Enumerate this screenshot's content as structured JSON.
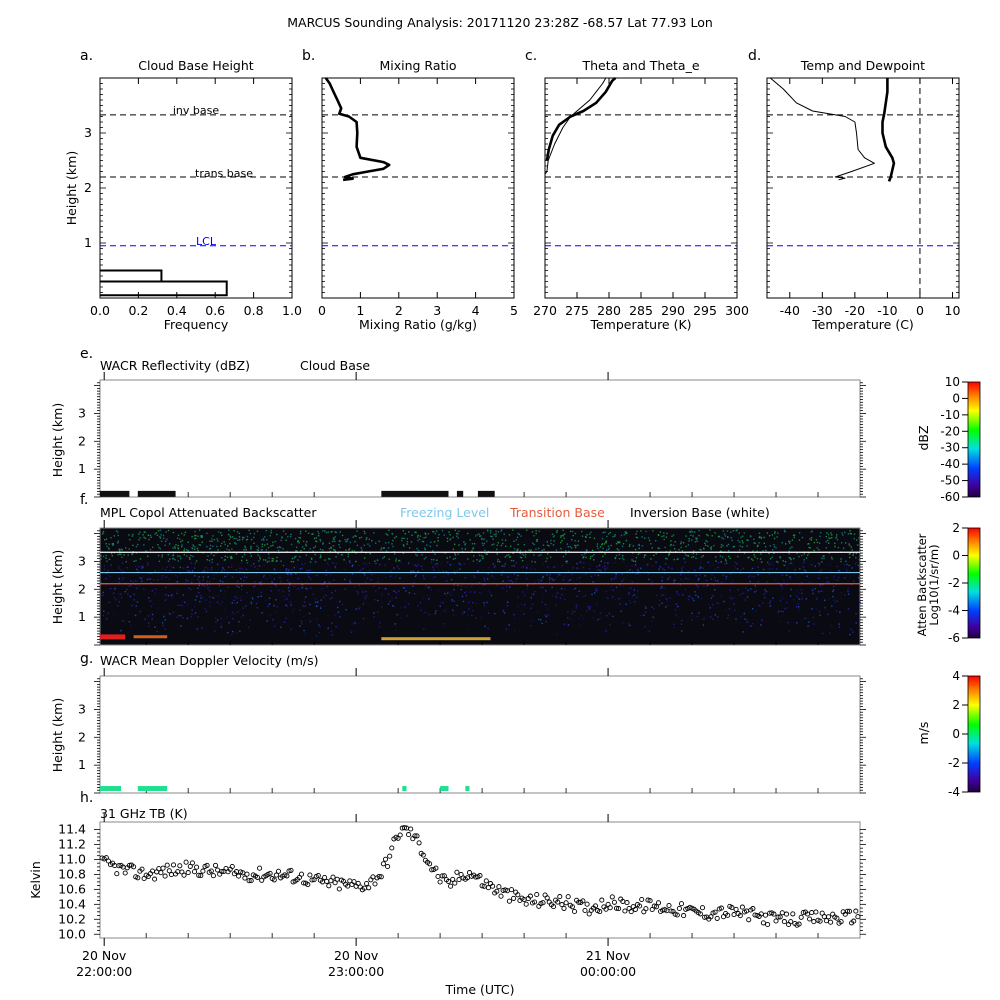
{
  "figure": {
    "title": "MARCUS Sounding Analysis: 20171120 23:28Z   -68.57 Lat   77.93 Lon"
  },
  "colors": {
    "lcl": "#0000ff",
    "freezing": "#7ec8ec",
    "transition": "#e85c3c",
    "inversion": "#ffffff"
  },
  "chart_data": [
    {
      "id": "a",
      "type": "histogram",
      "letter": "a.",
      "title": "Cloud Base Height",
      "xlabel": "Frequency",
      "ylabel": "Height (km)",
      "xlim": [
        0,
        1.0
      ],
      "ylim": [
        0,
        4
      ],
      "xticks": [
        "0.0",
        "0.2",
        "0.4",
        "0.6",
        "0.8",
        "1.0"
      ],
      "xtick_values": [
        0,
        0.2,
        0.4,
        0.6,
        0.8,
        1.0
      ],
      "yticks": [
        "1",
        "2",
        "3"
      ],
      "ytick_values": [
        1,
        2,
        3
      ],
      "bins": [
        {
          "y0": 0.05,
          "y1": 0.3,
          "freq": 0.66
        },
        {
          "y0": 0.3,
          "y1": 0.5,
          "freq": 0.32
        }
      ],
      "lines": [
        {
          "label": "inv base",
          "y": 3.33,
          "color": "black"
        },
        {
          "label": "trans base",
          "y": 2.2,
          "color": "black"
        },
        {
          "label": "LCL",
          "y": 0.95,
          "color": "blue"
        }
      ]
    },
    {
      "id": "b",
      "type": "line",
      "letter": "b.",
      "title": "Mixing Ratio",
      "xlabel": "Mixing Ratio (g/kg)",
      "xlim": [
        0,
        5
      ],
      "ylim": [
        0,
        4
      ],
      "xticks": [
        "0",
        "1",
        "2",
        "3",
        "4",
        "5"
      ],
      "xtick_values": [
        0,
        1,
        2,
        3,
        4,
        5
      ],
      "series": [
        {
          "weight": "bold",
          "points": [
            [
              0.55,
              2.15
            ],
            [
              0.8,
              2.17
            ],
            [
              0.6,
              2.2
            ],
            [
              0.8,
              2.25
            ],
            [
              1.2,
              2.3
            ],
            [
              1.6,
              2.35
            ],
            [
              1.75,
              2.42
            ],
            [
              1.6,
              2.47
            ],
            [
              1.0,
              2.55
            ],
            [
              0.9,
              2.75
            ],
            [
              0.92,
              3.0
            ],
            [
              0.9,
              3.2
            ],
            [
              0.7,
              3.3
            ],
            [
              0.45,
              3.35
            ],
            [
              0.5,
              3.45
            ],
            [
              0.4,
              3.6
            ],
            [
              0.3,
              3.75
            ],
            [
              0.2,
              3.9
            ],
            [
              0.1,
              4.0
            ]
          ]
        }
      ],
      "lines": [
        {
          "y": 3.33,
          "color": "black"
        },
        {
          "y": 2.2,
          "color": "black"
        },
        {
          "y": 0.95,
          "color": "blue"
        }
      ]
    },
    {
      "id": "c",
      "type": "line",
      "letter": "c.",
      "title": "Theta and Theta_e",
      "xlabel": "Temperature (K)",
      "xlim": [
        270,
        300
      ],
      "ylim": [
        0,
        4
      ],
      "xticks": [
        "270",
        "275",
        "280",
        "285",
        "290",
        "295",
        "300"
      ],
      "xtick_values": [
        270,
        275,
        280,
        285,
        290,
        295,
        300
      ],
      "series": [
        {
          "weight": "bold",
          "points": [
            [
              270.3,
              2.5
            ],
            [
              270.6,
              2.7
            ],
            [
              271.2,
              2.95
            ],
            [
              272.2,
              3.15
            ],
            [
              274,
              3.3
            ],
            [
              276,
              3.4
            ],
            [
              278,
              3.55
            ],
            [
              279.5,
              3.75
            ],
            [
              280.5,
              3.95
            ],
            [
              281,
              4.0
            ]
          ]
        },
        {
          "weight": "thin",
          "points": [
            [
              270,
              2.25
            ],
            [
              270.3,
              2.3
            ],
            [
              270.5,
              2.5
            ],
            [
              271.5,
              2.8
            ],
            [
              272.8,
              3.1
            ],
            [
              274,
              3.3
            ],
            [
              275.5,
              3.45
            ],
            [
              277,
              3.6
            ],
            [
              278,
              3.75
            ],
            [
              279,
              3.9
            ],
            [
              279.5,
              4.0
            ]
          ]
        }
      ],
      "lines": [
        {
          "y": 3.33,
          "color": "black"
        },
        {
          "y": 2.2,
          "color": "black"
        },
        {
          "y": 0.95,
          "color": "blue"
        }
      ]
    },
    {
      "id": "d",
      "type": "line",
      "letter": "d.",
      "title": "Temp and Dewpoint",
      "xlabel": "Temperature (C)",
      "xlim": [
        -47,
        12
      ],
      "ylim": [
        0,
        4
      ],
      "xticks": [
        "-40",
        "-30",
        "-20",
        "-10",
        "0",
        "10"
      ],
      "xtick_values": [
        -40,
        -30,
        -20,
        -10,
        0,
        10
      ],
      "series": [
        {
          "weight": "bold",
          "points": [
            [
              -9.5,
              2.12
            ],
            [
              -9,
              2.2
            ],
            [
              -8,
              2.45
            ],
            [
              -8.5,
              2.55
            ],
            [
              -10.5,
              2.75
            ],
            [
              -11.5,
              3.0
            ],
            [
              -11.5,
              3.2
            ],
            [
              -11,
              3.35
            ],
            [
              -10.5,
              3.55
            ],
            [
              -10,
              3.75
            ],
            [
              -10,
              4.0
            ]
          ]
        },
        {
          "weight": "thin",
          "points": [
            [
              -25,
              2.15
            ],
            [
              -23,
              2.18
            ],
            [
              -26,
              2.2
            ],
            [
              -21,
              2.3
            ],
            [
              -14,
              2.45
            ],
            [
              -17,
              2.55
            ],
            [
              -19,
              2.7
            ],
            [
              -19.5,
              3.0
            ],
            [
              -20,
              3.2
            ],
            [
              -23,
              3.3
            ],
            [
              -33,
              3.4
            ],
            [
              -38,
              3.55
            ],
            [
              -42,
              3.8
            ],
            [
              -46,
              4.0
            ]
          ]
        }
      ],
      "lines": [
        {
          "y": 3.33,
          "color": "black"
        },
        {
          "y": 2.2,
          "color": "black"
        },
        {
          "y": 0.95,
          "color": "blue"
        }
      ],
      "vline": 0
    },
    {
      "id": "e",
      "type": "heatmap",
      "letter": "e.",
      "title": "WACR Reflectivity (dBZ)",
      "subtitle": "Cloud Base",
      "ylabel": "Height (km)",
      "ylim": [
        0,
        4.2
      ],
      "yticks": [
        "1",
        "2",
        "3"
      ],
      "ytick_values": [
        1,
        2,
        3
      ],
      "cbar_label": "dBZ",
      "cbar_ticks": [
        "10",
        "0",
        "-10",
        "-20",
        "-30",
        "-40",
        "-50",
        "-60"
      ]
    },
    {
      "id": "f",
      "type": "heatmap",
      "letter": "f.",
      "title": "MPL Copol Attenuated Backscatter",
      "legend": [
        "Freezing Level",
        "Transition Base",
        "Inversion Base (white)"
      ],
      "ylabel": "Height (km)",
      "ylim": [
        0,
        4.2
      ],
      "yticks": [
        "1",
        "2",
        "3"
      ],
      "ytick_values": [
        1,
        2,
        3
      ],
      "cbar_label": "Atten Backscatter",
      "cbar_label2": "Log10(1/sr/m)",
      "cbar_ticks": [
        "2",
        "0",
        "-2",
        "-4",
        "-6"
      ],
      "levels": {
        "inversion": 3.33,
        "freezing": 2.6,
        "transition": 2.2
      }
    },
    {
      "id": "g",
      "type": "heatmap",
      "letter": "g.",
      "title": "WACR Mean Doppler Velocity (m/s)",
      "ylabel": "Height (km)",
      "ylim": [
        0,
        4.2
      ],
      "yticks": [
        "1",
        "2",
        "3"
      ],
      "ytick_values": [
        1,
        2,
        3
      ],
      "cbar_label": "m/s",
      "cbar_ticks": [
        "4",
        "2",
        "0",
        "-2",
        "-4"
      ]
    },
    {
      "id": "h",
      "type": "scatter",
      "letter": "h.",
      "title": "31 GHz TB (K)",
      "ylabel": "Kelvin",
      "xlabel": "Time (UTC)",
      "ylim": [
        9.95,
        11.5
      ],
      "yticks": [
        "10.0",
        "10.2",
        "10.4",
        "10.6",
        "10.8",
        "11.0",
        "11.2",
        "11.4"
      ],
      "ytick_values": [
        10.0,
        10.2,
        10.4,
        10.6,
        10.8,
        11.0,
        11.2,
        11.4
      ],
      "xlim_minutes": [
        -1,
        180
      ],
      "xticks": [
        {
          "minutes": 0,
          "line1": "20 Nov",
          "line2": "22:00:00"
        },
        {
          "minutes": 60,
          "line1": "20 Nov",
          "line2": "23:00:00"
        },
        {
          "minutes": 120,
          "line1": "21 Nov",
          "line2": "00:00:00"
        }
      ],
      "anchors": [
        [
          0,
          10.95
        ],
        [
          5,
          10.85
        ],
        [
          10,
          10.8
        ],
        [
          15,
          10.85
        ],
        [
          20,
          10.88
        ],
        [
          25,
          10.85
        ],
        [
          30,
          10.82
        ],
        [
          35,
          10.8
        ],
        [
          40,
          10.8
        ],
        [
          45,
          10.78
        ],
        [
          50,
          10.72
        ],
        [
          55,
          10.68
        ],
        [
          60,
          10.65
        ],
        [
          63,
          10.68
        ],
        [
          66,
          10.82
        ],
        [
          68,
          11.05
        ],
        [
          70,
          11.35
        ],
        [
          72,
          11.4
        ],
        [
          74,
          11.3
        ],
        [
          76,
          11.1
        ],
        [
          78,
          10.9
        ],
        [
          80,
          10.75
        ],
        [
          82,
          10.65
        ],
        [
          84,
          10.75
        ],
        [
          86,
          10.82
        ],
        [
          88,
          10.8
        ],
        [
          90,
          10.7
        ],
        [
          95,
          10.55
        ],
        [
          100,
          10.45
        ],
        [
          105,
          10.45
        ],
        [
          110,
          10.42
        ],
        [
          115,
          10.35
        ],
        [
          120,
          10.42
        ],
        [
          125,
          10.38
        ],
        [
          130,
          10.38
        ],
        [
          135,
          10.35
        ],
        [
          140,
          10.3
        ],
        [
          145,
          10.28
        ],
        [
          150,
          10.3
        ],
        [
          155,
          10.25
        ],
        [
          160,
          10.2
        ],
        [
          165,
          10.2
        ],
        [
          170,
          10.22
        ],
        [
          175,
          10.22
        ],
        [
          180,
          10.25
        ]
      ]
    }
  ]
}
